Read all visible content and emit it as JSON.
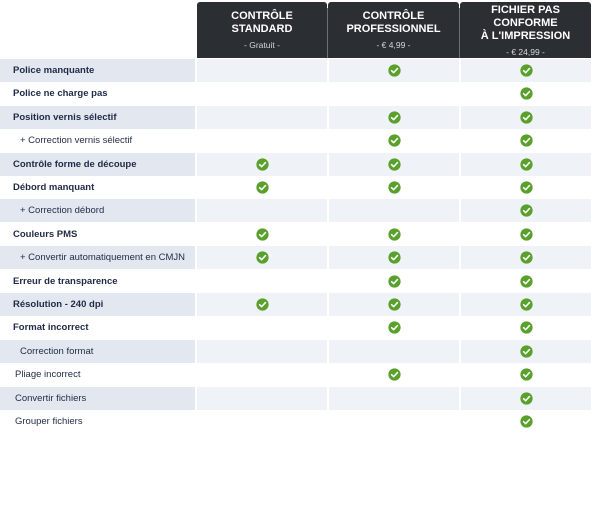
{
  "columns": [
    {
      "title": "CONTRÔLE STANDARD",
      "price": "- Gratuit -"
    },
    {
      "title": "CONTRÔLE PROFESSIONNEL",
      "price": "- € 4,99 -"
    },
    {
      "title": "FICHIER PAS CONFORME À L'IMPRESSION",
      "price": "- € 24,99 -"
    }
  ],
  "column_title_lines": [
    [
      "CONTRÔLE",
      "STANDARD"
    ],
    [
      "CONTRÔLE",
      "PROFESSIONNEL"
    ],
    [
      "FICHIER PAS CONFORME",
      "À L'IMPRESSION"
    ]
  ],
  "check_color": "#5aa02c",
  "check_icon": "check-circle-icon",
  "rows": [
    {
      "label": "Police manquante",
      "bold": true,
      "indent": 0,
      "checks": [
        false,
        true,
        true
      ]
    },
    {
      "label": "Police ne charge pas",
      "bold": true,
      "indent": 0,
      "checks": [
        false,
        false,
        true
      ]
    },
    {
      "label": "Position vernis sélectif",
      "bold": true,
      "indent": 0,
      "checks": [
        false,
        true,
        true
      ]
    },
    {
      "label": "+ Correction vernis sélectif",
      "bold": false,
      "indent": 1,
      "checks": [
        false,
        true,
        true
      ]
    },
    {
      "label": "Contrôle forme de découpe",
      "bold": true,
      "indent": 0,
      "checks": [
        true,
        true,
        true
      ]
    },
    {
      "label": "Débord manquant",
      "bold": true,
      "indent": 0,
      "checks": [
        true,
        true,
        true
      ]
    },
    {
      "label": "+ Correction débord",
      "bold": false,
      "indent": 1,
      "checks": [
        false,
        false,
        true
      ]
    },
    {
      "label": "Couleurs PMS",
      "bold": true,
      "indent": 0,
      "checks": [
        true,
        true,
        true
      ]
    },
    {
      "label": "+ Convertir automatiquement en CMJN",
      "bold": false,
      "indent": 1,
      "checks": [
        true,
        true,
        true
      ]
    },
    {
      "label": "Erreur de transparence",
      "bold": true,
      "indent": 0,
      "checks": [
        false,
        true,
        true
      ]
    },
    {
      "label": "Résolution - 240 dpi",
      "bold": true,
      "indent": 0,
      "checks": [
        true,
        true,
        true
      ]
    },
    {
      "label": "Format incorrect",
      "bold": true,
      "indent": 0,
      "checks": [
        false,
        true,
        true
      ]
    },
    {
      "label": "Correction format",
      "bold": false,
      "indent": 1,
      "checks": [
        false,
        false,
        true
      ]
    },
    {
      "label": "Pliage incorrect",
      "bold": false,
      "indent": 2,
      "checks": [
        false,
        true,
        true
      ]
    },
    {
      "label": "Convertir fichiers",
      "bold": false,
      "indent": 2,
      "checks": [
        false,
        false,
        true
      ]
    },
    {
      "label": "Grouper fichiers",
      "bold": false,
      "indent": 2,
      "checks": [
        false,
        false,
        true
      ]
    }
  ]
}
